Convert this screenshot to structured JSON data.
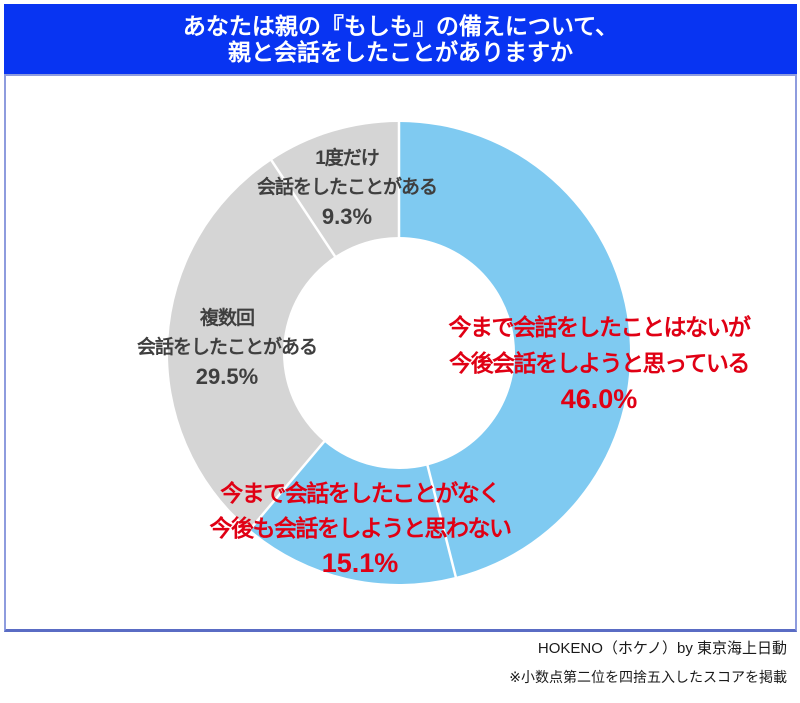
{
  "header": {
    "title_line1": "あなたは親の『もしも』の備えについて、",
    "title_line2": "親と会話をしたことがありますか",
    "bg_color": "#0834F2",
    "text_color": "#FFFFFF"
  },
  "chart_data": {
    "type": "pie",
    "subtype": "donut",
    "start_angle_deg": 0,
    "direction": "clockwise",
    "divider_color": "#FFFFFF",
    "segments": [
      {
        "label_lines": [
          "今まで会話をしたことはないが",
          "今後会話をしようと思っている"
        ],
        "value_pct": 46.0,
        "value_label": "46.0%",
        "color": "#7FCAF1",
        "label_color": "#E00014"
      },
      {
        "label_lines": [
          "今まで会話をしたことがなく",
          "今後も会話をしようと思わない"
        ],
        "value_pct": 15.1,
        "value_label": "15.1%",
        "color": "#7FCAF1",
        "label_color": "#E00014"
      },
      {
        "label_lines": [
          "複数回",
          "会話をしたことがある"
        ],
        "value_pct": 29.5,
        "value_label": "29.5%",
        "color": "#D5D5D5",
        "label_color": "#3F3F3F"
      },
      {
        "label_lines": [
          "1度だけ",
          "会話をしたことがある"
        ],
        "value_pct": 9.3,
        "value_label": "9.3%",
        "color": "#D5D5D5",
        "label_color": "#3F3F3F"
      }
    ]
  },
  "footer": {
    "credit": "HOKENO（ホケノ）by 東京海上日動",
    "note": "※小数点第二位を四捨五入したスコアを掲載"
  }
}
